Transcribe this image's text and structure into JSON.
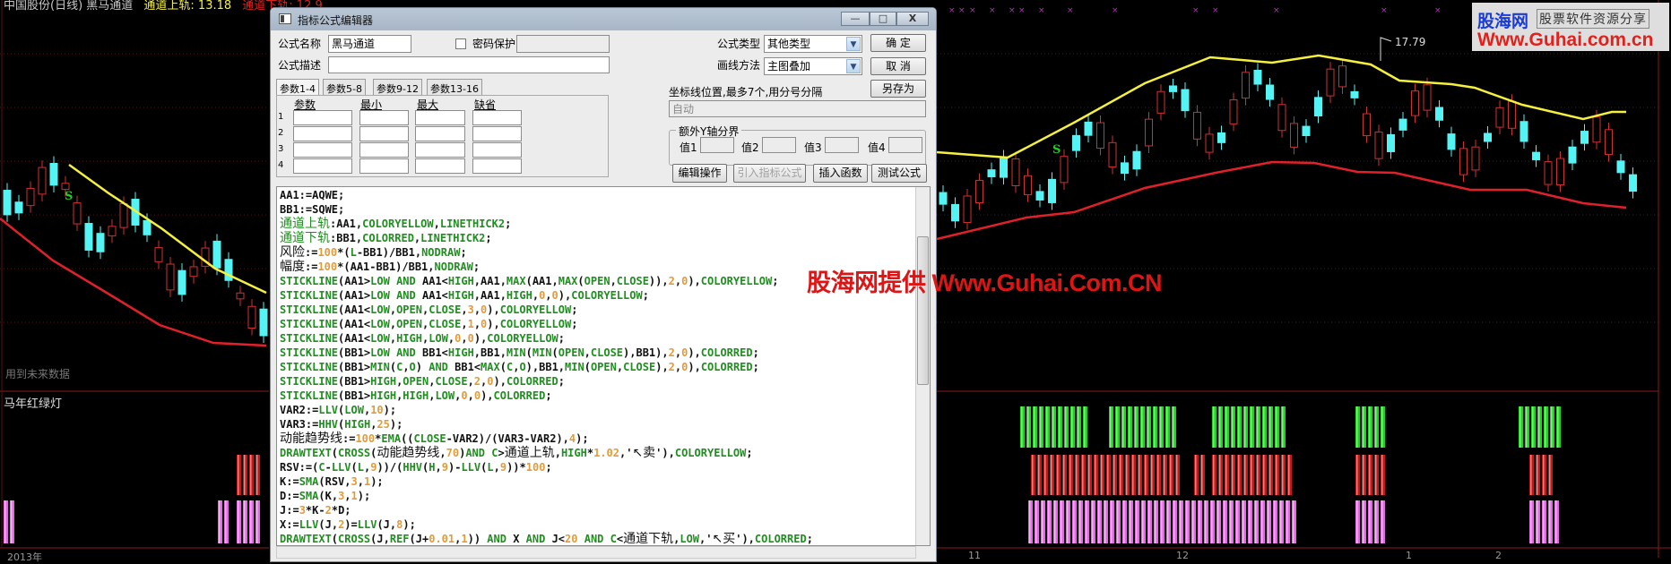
{
  "chart_header": {
    "title": "中国股份(日线) 黑马通道",
    "upper": "通道上轨: 13.18",
    "lower": "通道下轨: 12.9"
  },
  "left_panel": {
    "future_data_note": "用到未来数据",
    "sub_indicator": "马年红绿灯"
  },
  "axis": {
    "year_label": "2013年",
    "months": [
      "11",
      "12",
      "1",
      "2"
    ]
  },
  "right_panel": {
    "high_label": "17.79",
    "sell_marker": "S",
    "buy_marker": "S"
  },
  "watermark": "股海网提供 Www.Guhai.Com.CN",
  "logo": {
    "brand": "股海网",
    "tagline": "股票软件资源分享",
    "url": "Www.Guhai.com.cn"
  },
  "colors": {
    "upper_band": "#f5f03c",
    "lower_band": "#e0202a",
    "down_candle": "#54f4f4",
    "up_candle": "#d03030",
    "signal_green": "#20e020",
    "signal_red": "#d01818",
    "signal_magenta": "#f070f0"
  },
  "dialog": {
    "title": "指标公式编辑器",
    "window_buttons": {
      "minimize": "—",
      "maximize": "□",
      "close": "X"
    },
    "name_label": "公式名称",
    "name_value": "黑马通道",
    "password_label": "密码保护",
    "password_checked": false,
    "password_value": "",
    "desc_label": "公式描述",
    "desc_value": "",
    "type_label": "公式类型",
    "type_value": "其他类型",
    "draw_label": "画线方法",
    "draw_value": "主图叠加",
    "ok": "确    定",
    "cancel": "取    消",
    "save_as": "另存为",
    "tabs": [
      "参数1-4",
      "参数5-8",
      "参数9-12",
      "参数13-16"
    ],
    "active_tab": 0,
    "param_headers": [
      "参数",
      "最小",
      "最大",
      "缺省"
    ],
    "param_rows": [
      "1",
      "2",
      "3",
      "4"
    ],
    "axis_pos_label": "坐标线位置,最多7个,用分号分隔",
    "axis_pos_value": "自动",
    "extra_y_label": "额外Y轴分界",
    "extra_y_fields": [
      "值1",
      "值2",
      "值3",
      "值4"
    ],
    "buttons": [
      "编辑操作",
      "引入指标公式",
      "插入函数",
      "测试公式"
    ],
    "code": [
      "AA1:=AQWE;",
      "BB1:=SQWE;",
      "通道上轨:AA1,COLORYELLOW,LINETHICK2;",
      "通道下轨:BB1,COLORRED,LINETHICK2;",
      "风险:=100*(L-BB1)/BB1,NODRAW;",
      "幅度:=100*(AA1-BB1)/BB1,NODRAW;",
      "STICKLINE(AA1>LOW AND AA1<HIGH,AA1,MAX(AA1,MAX(OPEN,CLOSE)),2,0),COLORYELLOW;",
      "STICKLINE(AA1>LOW AND AA1<HIGH,AA1,HIGH,0,0),COLORYELLOW;",
      "STICKLINE(AA1<LOW,OPEN,CLOSE,3,0),COLORYELLOW;",
      "STICKLINE(AA1<LOW,OPEN,CLOSE,1,0),COLORYELLOW;",
      "STICKLINE(AA1<LOW,HIGH,LOW,0,0),COLORYELLOW;",
      "STICKLINE(BB1>LOW AND BB1<HIGH,BB1,MIN(MIN(OPEN,CLOSE),BB1),2,0),COLORRED;",
      "STICKLINE(BB1>MIN(C,O) AND BB1<MAX(C,O),BB1,MIN(OPEN,CLOSE),2,0),COLORRED;",
      "STICKLINE(BB1>HIGH,OPEN,CLOSE,2,0),COLORRED;",
      "STICKLINE(BB1>HIGH,HIGH,LOW,0,0),COLORRED;",
      "VAR2:=LLV(LOW,10);",
      "VAR3:=HHV(HIGH,25);",
      "动能趋势线:=100*EMA((CLOSE-VAR2)/(VAR3-VAR2),4);",
      "DRAWTEXT(CROSS(动能趋势线,70)AND C>通道上轨,HIGH*1.02,'↖卖'),COLORYELLOW;",
      "RSV:=(C-LLV(L,9))/(HHV(H,9)-LLV(L,9))*100;",
      "K:=SMA(RSV,3,1);",
      "D:=SMA(K,3,1);",
      "J:=3*K-2*D;",
      "X:=LLV(J,2)=LLV(J,8);",
      "DRAWTEXT(CROSS(J,REF(J+0.01,1)) AND X AND J<20 AND C<通道下轨,LOW,'↖买'),COLORRED;"
    ]
  }
}
